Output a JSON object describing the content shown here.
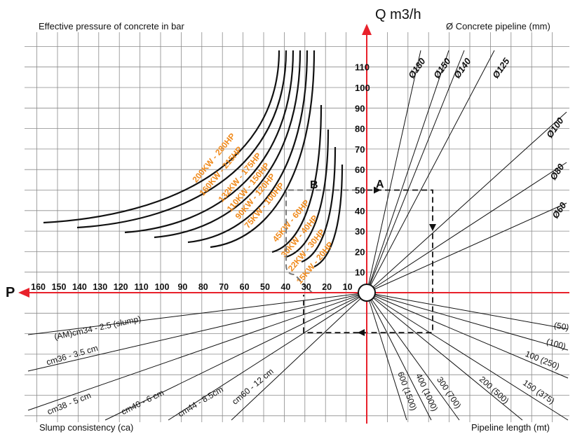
{
  "header": {
    "top_left": "Effective pressure of concrete in bar",
    "top_right": "Ø Concrete pipeline (mm)",
    "bottom_left": "Slump consistency (ca)",
    "bottom_right": "Pipeline length (mt)"
  },
  "axes": {
    "q_label": "Q m3/h",
    "p_label": "P",
    "q_ticks": [
      "10",
      "20",
      "30",
      "40",
      "50",
      "60",
      "70",
      "80",
      "90",
      "100",
      "110"
    ],
    "p_ticks": [
      "160",
      "150",
      "140",
      "130",
      "120",
      "110",
      "100",
      "90",
      "80",
      "70",
      "60",
      "50",
      "40",
      "30",
      "20",
      "10"
    ]
  },
  "points": {
    "a": "A",
    "b": "B"
  },
  "colors": {
    "axis": "#e8212b",
    "power": "#f08a1c",
    "grid": "#8a8a8a",
    "line": "#111111"
  },
  "chart_data": {
    "type": "nomogram",
    "quadrants": {
      "top_left_power_curves": [
        {
          "label": "200KW - 280HP"
        },
        {
          "label": "160KW - 215HP"
        },
        {
          "label": "132KW - 175HP"
        },
        {
          "label": "110KW - 150HP"
        },
        {
          "label": "90KW - 120HP"
        },
        {
          "label": "75KW - 100HP"
        },
        {
          "label": "45KW - 60HP"
        },
        {
          "label": "30KW - 40HP"
        },
        {
          "label": "22KW - 30HP"
        },
        {
          "label": "15KW - 20HP"
        }
      ],
      "top_right_pipeline_diameter": [
        "Ø180",
        "Ø150",
        "Ø140",
        "Ø125",
        "Ø100",
        "Ø80",
        "Ø60"
      ],
      "bottom_left_slump": [
        "(AM)cm34 - 2.5 (slump)",
        "cm36 - 3.5 cm",
        "cm38 - 5 cm",
        "cm40 - 6 cm",
        "cm44 - 8.5cm",
        "cm60 - 12 cm"
      ],
      "bottom_right_pipeline_length": [
        "600 (1500)",
        "400 (1000)",
        "300 (700)",
        "200 (500)",
        "150 (375)",
        "100 (250)",
        "(100)",
        "(50)"
      ]
    },
    "example_path": {
      "start_point": "A",
      "flow_m3h": 50,
      "pressure_bar": 32,
      "power_point": "B"
    }
  }
}
